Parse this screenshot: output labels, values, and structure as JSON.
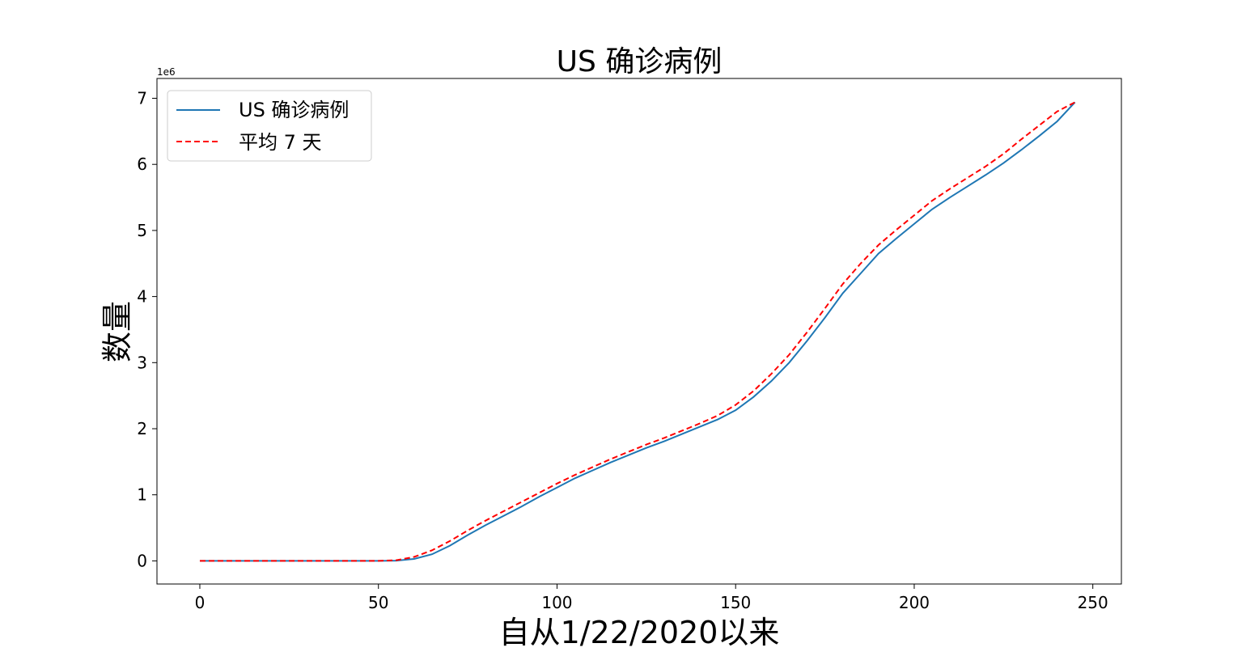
{
  "chart_data": {
    "type": "line",
    "title": "US 确诊病例",
    "xlabel": "自从1/22/2020以来",
    "ylabel": "数量",
    "y_offset_label": "1e6",
    "xlim": [
      -12,
      258
    ],
    "ylim": [
      -0.35,
      7.3
    ],
    "x_ticks": [
      0,
      50,
      100,
      150,
      200,
      250
    ],
    "x_tick_labels": [
      "0",
      "50",
      "100",
      "150",
      "200",
      "250"
    ],
    "y_ticks": [
      0,
      1,
      2,
      3,
      4,
      5,
      6,
      7
    ],
    "y_tick_labels": [
      "0",
      "1",
      "2",
      "3",
      "4",
      "5",
      "6",
      "7"
    ],
    "grid": false,
    "legend_position": "top-left",
    "series": [
      {
        "name": "US 确诊病例",
        "color": "#1f77b4",
        "style": "solid",
        "x": [
          0,
          50,
          55,
          60,
          65,
          70,
          75,
          80,
          85,
          90,
          95,
          100,
          105,
          110,
          115,
          120,
          125,
          130,
          135,
          140,
          145,
          150,
          155,
          160,
          165,
          170,
          175,
          180,
          185,
          190,
          195,
          200,
          205,
          210,
          215,
          220,
          225,
          230,
          235,
          240,
          245
        ],
        "y": [
          0,
          0,
          0.004,
          0.03,
          0.1,
          0.23,
          0.39,
          0.54,
          0.68,
          0.82,
          0.97,
          1.11,
          1.25,
          1.37,
          1.49,
          1.6,
          1.71,
          1.81,
          1.92,
          2.03,
          2.14,
          2.28,
          2.48,
          2.72,
          3.0,
          3.33,
          3.68,
          4.05,
          4.35,
          4.65,
          4.88,
          5.1,
          5.32,
          5.5,
          5.67,
          5.84,
          6.02,
          6.22,
          6.43,
          6.65,
          6.94
        ]
      },
      {
        "name": "平均 7 天",
        "color": "#ff0000",
        "style": "dashed",
        "x": [
          0,
          50,
          55,
          60,
          65,
          70,
          75,
          80,
          85,
          90,
          95,
          100,
          105,
          110,
          115,
          120,
          125,
          130,
          135,
          140,
          145,
          150,
          155,
          160,
          165,
          170,
          175,
          180,
          185,
          190,
          195,
          200,
          205,
          210,
          215,
          220,
          225,
          230,
          235,
          240,
          245
        ],
        "y": [
          0,
          0,
          0.01,
          0.06,
          0.16,
          0.3,
          0.46,
          0.61,
          0.75,
          0.89,
          1.03,
          1.17,
          1.3,
          1.42,
          1.54,
          1.65,
          1.76,
          1.86,
          1.97,
          2.08,
          2.2,
          2.36,
          2.57,
          2.83,
          3.12,
          3.46,
          3.82,
          4.19,
          4.5,
          4.78,
          5.01,
          5.23,
          5.45,
          5.63,
          5.8,
          5.97,
          6.16,
          6.38,
          6.59,
          6.8,
          6.94
        ]
      }
    ]
  }
}
